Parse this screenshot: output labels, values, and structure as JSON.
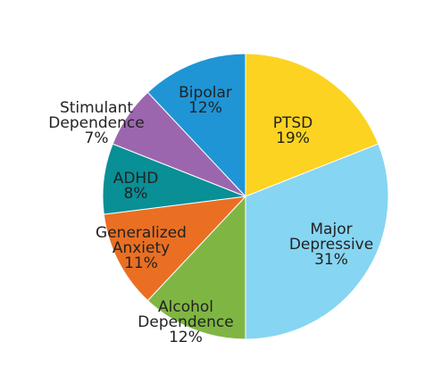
{
  "chart_data": {
    "type": "pie",
    "title": "",
    "start_angle_deg": 0,
    "direction": "clockwise",
    "legend": "none",
    "slices": [
      {
        "label_lines": [
          "PTSD"
        ],
        "value": 19,
        "value_label": "19%",
        "color": "#FCD321"
      },
      {
        "label_lines": [
          "Major",
          "Depressive"
        ],
        "value": 31,
        "value_label": "31%",
        "color": "#86D5F2"
      },
      {
        "label_lines": [
          "Alcohol",
          "Dependence"
        ],
        "value": 12,
        "value_label": "12%",
        "color": "#7FB643"
      },
      {
        "label_lines": [
          "Generalized",
          "Anxiety"
        ],
        "value": 11,
        "value_label": "11%",
        "color": "#EA6F23"
      },
      {
        "label_lines": [
          "ADHD"
        ],
        "value": 8,
        "value_label": "8%",
        "color": "#098F96"
      },
      {
        "label_lines": [
          "Stimulant",
          "Dependence"
        ],
        "value": 7,
        "value_label": "7%",
        "color": "#9C66AE"
      },
      {
        "label_lines": [
          "Bipolar"
        ],
        "value": 12,
        "value_label": "12%",
        "color": "#1F95D6"
      }
    ]
  }
}
